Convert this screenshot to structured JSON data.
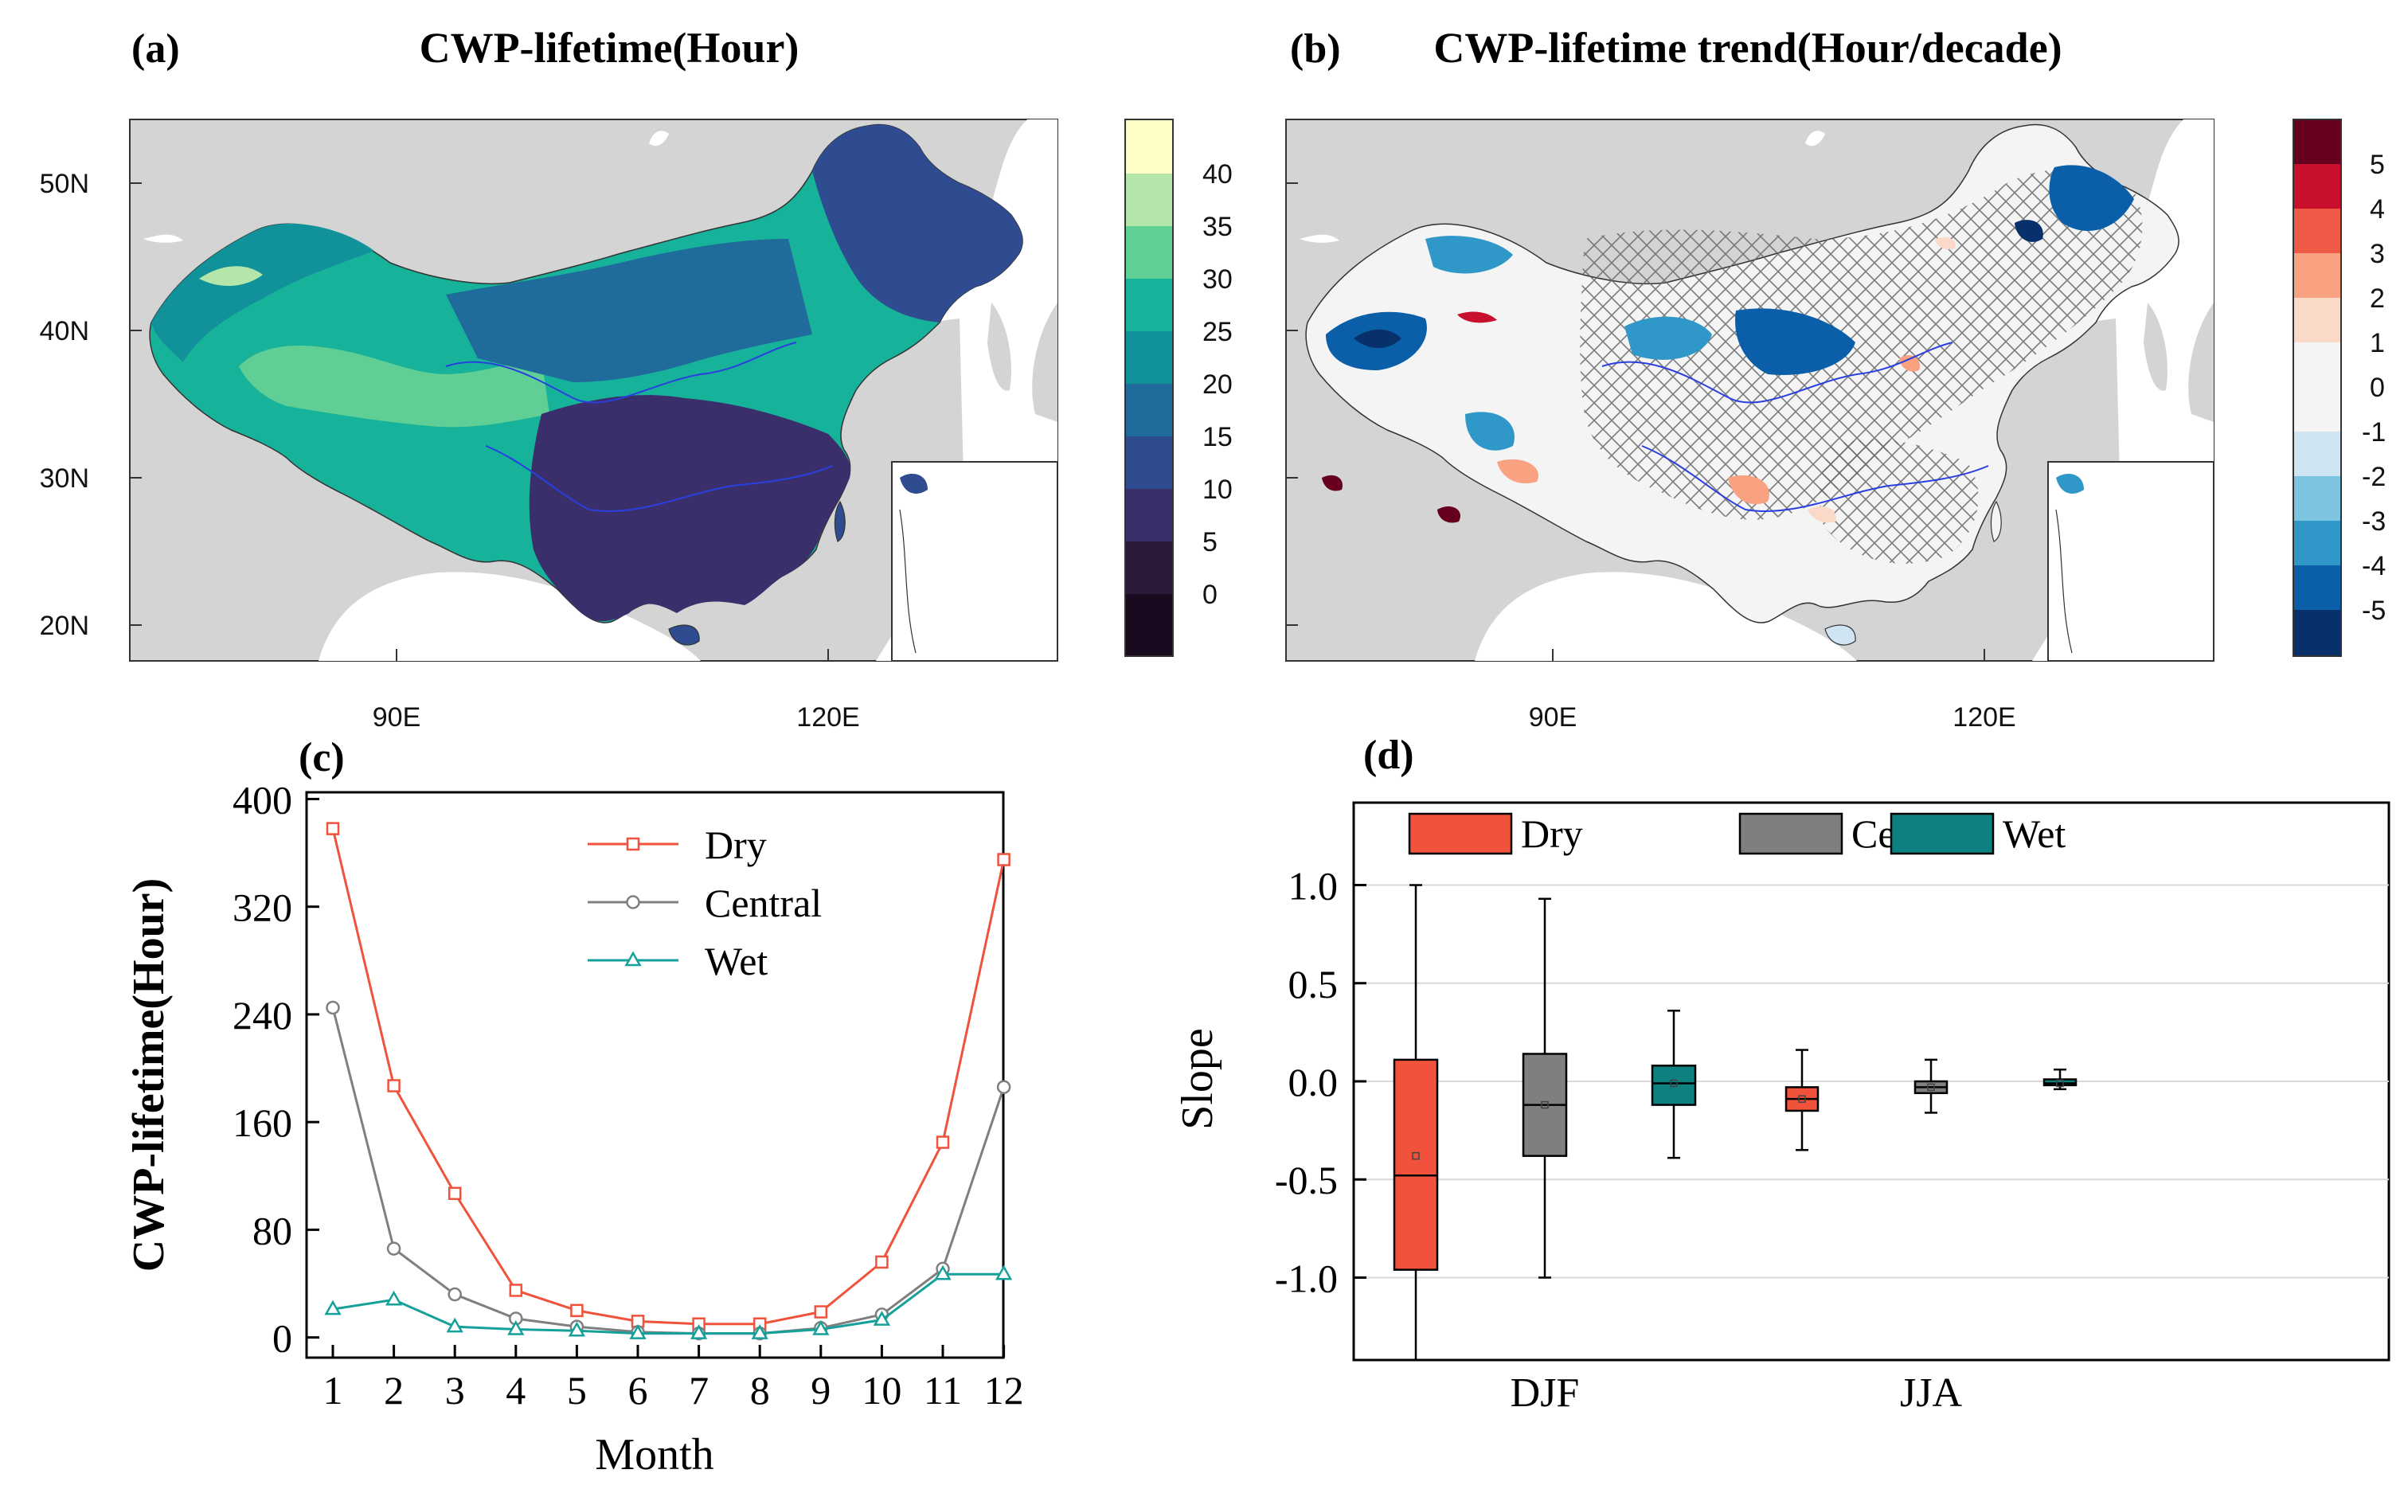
{
  "panels": {
    "a": {
      "label": "(a)",
      "title": "CWP-lifetime(Hour)",
      "lat_ticks": [
        "50N",
        "40N",
        "30N",
        "20N"
      ],
      "lon_ticks": [
        "90E",
        "120E"
      ],
      "colorbar": {
        "labels": [
          "40",
          "35",
          "30",
          "25",
          "20",
          "15",
          "10",
          "5",
          "0"
        ],
        "colors": [
          "#fefdc8",
          "#b3e6a8",
          "#5fcf95",
          "#17b29a",
          "#11929a",
          "#1e6b9c",
          "#2e4c8f",
          "#3a2f6a",
          "#2a1a38",
          "#1a0a1f"
        ]
      }
    },
    "b": {
      "label": "(b)",
      "title": "CWP-lifetime trend(Hour/decade)",
      "lat_ticks": [
        "50N",
        "40N",
        "30N",
        "20N"
      ],
      "lon_ticks": [
        "90E",
        "120E"
      ],
      "colorbar": {
        "labels": [
          "5",
          "4",
          "3",
          "2",
          "1",
          "0",
          "-1",
          "-2",
          "-3",
          "-4",
          "-5"
        ],
        "colors": [
          "#67001f",
          "#c8102e",
          "#ee5a45",
          "#f9a282",
          "#fbd9c8",
          "#f4f4f4",
          "#f4f4f4",
          "#cfe6f2",
          "#7cc4e0",
          "#2f98c8",
          "#0a5fa8",
          "#08306b"
        ]
      }
    }
  },
  "chart_data": [
    {
      "panel": "(c)",
      "type": "line",
      "xlabel": "Month",
      "ylabel": "CWP-lifetime(Hour)",
      "x": [
        1,
        2,
        3,
        4,
        5,
        6,
        7,
        8,
        9,
        10,
        11,
        12
      ],
      "xticks": [
        "1",
        "2",
        "3",
        "4",
        "5",
        "6",
        "7",
        "8",
        "9",
        "10",
        "11",
        "12"
      ],
      "yticks": [
        "0",
        "80",
        "160",
        "240",
        "320",
        "400"
      ],
      "ylim": [
        -15,
        405
      ],
      "series": [
        {
          "name": "Dry",
          "color": "#f0523c",
          "marker": "square",
          "values": [
            378,
            187,
            107,
            35,
            20,
            12,
            10,
            10,
            19,
            56,
            145,
            355
          ]
        },
        {
          "name": "Central",
          "color": "#7f7f7f",
          "marker": "circle",
          "values": [
            245,
            66,
            32,
            14,
            8,
            4,
            3,
            3,
            7,
            17,
            51,
            186
          ]
        },
        {
          "name": "Wet",
          "color": "#16a09a",
          "marker": "triangle",
          "values": [
            21,
            28,
            8,
            6,
            5,
            3,
            3,
            3,
            6,
            13,
            47,
            47
          ]
        }
      ]
    },
    {
      "panel": "(d)",
      "type": "box",
      "ylabel": "Slope",
      "categories": [
        "DJF",
        "JJA"
      ],
      "yticks": [
        "1.0",
        "0.5",
        "0.0",
        "-0.5",
        "-1.0"
      ],
      "ylim": [
        -1.42,
        1.42
      ],
      "series": [
        {
          "name": "Dry",
          "color": "#f0523c",
          "boxes": [
            {
              "group": "DJF",
              "min": -1.42,
              "q1": -0.96,
              "median": -0.48,
              "q3": 0.11,
              "max": 1.0,
              "mean": -0.38
            },
            {
              "group": "JJA",
              "min": -0.35,
              "q1": -0.15,
              "median": -0.09,
              "q3": -0.03,
              "max": 0.16,
              "mean": -0.09
            }
          ]
        },
        {
          "name": "Central",
          "color": "#7f7f7f",
          "boxes": [
            {
              "group": "DJF",
              "min": -1.0,
              "q1": -0.38,
              "median": -0.12,
              "q3": 0.14,
              "max": 0.93,
              "mean": -0.12
            },
            {
              "group": "JJA",
              "min": -0.16,
              "q1": -0.06,
              "median": -0.03,
              "q3": 0.0,
              "max": 0.11,
              "mean": -0.03
            }
          ]
        },
        {
          "name": "Wet",
          "color": "#0d8080",
          "boxes": [
            {
              "group": "DJF",
              "min": -0.39,
              "q1": -0.12,
              "median": -0.01,
              "q3": 0.08,
              "max": 0.36,
              "mean": -0.01
            },
            {
              "group": "JJA",
              "min": -0.04,
              "q1": -0.02,
              "median": -0.01,
              "q3": 0.01,
              "max": 0.06,
              "mean": -0.01
            }
          ]
        }
      ]
    }
  ]
}
